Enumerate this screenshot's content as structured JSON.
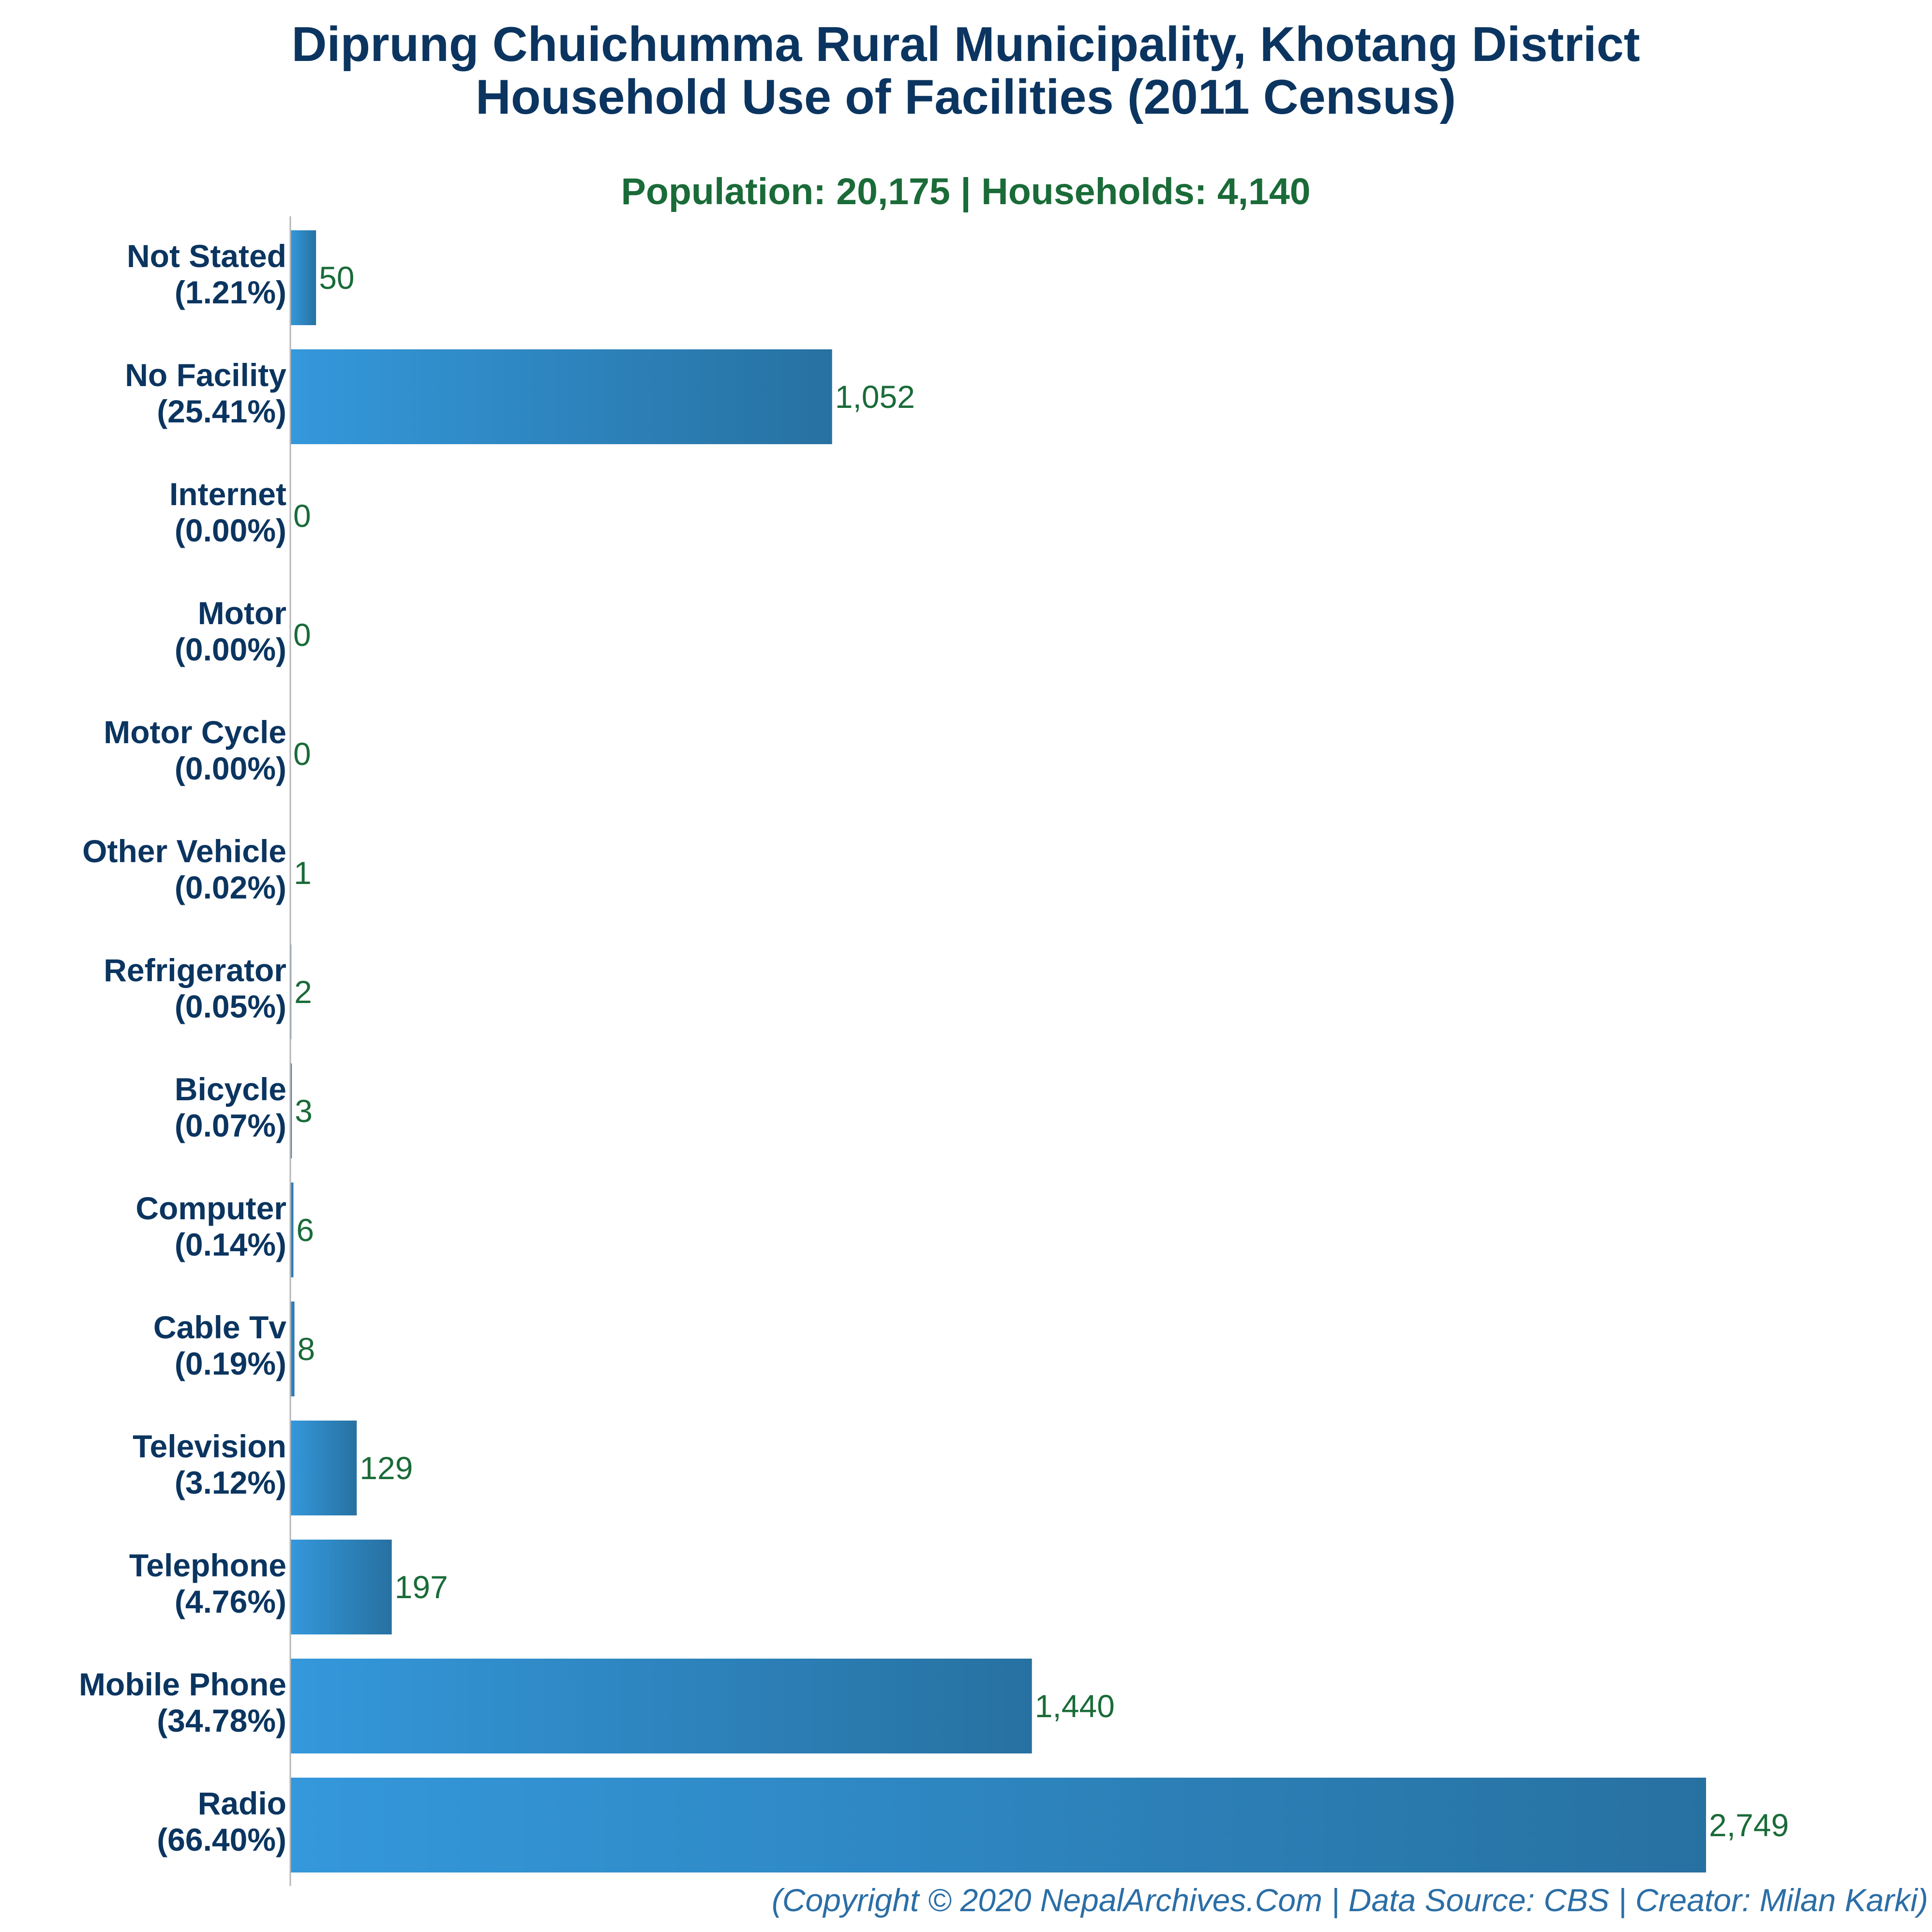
{
  "chart_data": {
    "type": "bar",
    "orientation": "horizontal",
    "title_lines": [
      "Diprung Chuichumma Rural Municipality, Khotang District",
      "Household Use of Facilities (2011 Census)"
    ],
    "subtitle": "Population: 20,175 | Households: 4,140",
    "categories": [
      {
        "name": "Not Stated",
        "pct": "(1.21%)",
        "value": 50,
        "label": "50"
      },
      {
        "name": "No Facility",
        "pct": "(25.41%)",
        "value": 1052,
        "label": "1,052"
      },
      {
        "name": "Internet",
        "pct": "(0.00%)",
        "value": 0,
        "label": "0"
      },
      {
        "name": "Motor",
        "pct": "(0.00%)",
        "value": 0,
        "label": "0"
      },
      {
        "name": "Motor Cycle",
        "pct": "(0.00%)",
        "value": 0,
        "label": "0"
      },
      {
        "name": "Other Vehicle",
        "pct": "(0.02%)",
        "value": 1,
        "label": "1"
      },
      {
        "name": "Refrigerator",
        "pct": "(0.05%)",
        "value": 2,
        "label": "2"
      },
      {
        "name": "Bicycle",
        "pct": "(0.07%)",
        "value": 3,
        "label": "3"
      },
      {
        "name": "Computer",
        "pct": "(0.14%)",
        "value": 6,
        "label": "6"
      },
      {
        "name": "Cable Tv",
        "pct": "(0.19%)",
        "value": 8,
        "label": "8"
      },
      {
        "name": "Television",
        "pct": "(3.12%)",
        "value": 129,
        "label": "129"
      },
      {
        "name": "Telephone",
        "pct": "(4.76%)",
        "value": 197,
        "label": "197"
      },
      {
        "name": "Mobile Phone",
        "pct": "(34.78%)",
        "value": 1440,
        "label": "1,440"
      },
      {
        "name": "Radio",
        "pct": "(66.40%)",
        "value": 2749,
        "label": "2,749"
      }
    ],
    "xlim": [
      0,
      2749
    ],
    "grid": false,
    "bar_color_start": "#3498db",
    "bar_color_end": "#2771a1"
  },
  "footer": "(Copyright © 2020 NepalArchives.Com | Data Source: CBS | Creator: Milan Karki)",
  "colors": {
    "title": "#0b3560",
    "subtitle": "#1a6b38",
    "value_labels": "#1a6b38",
    "footer": "#2b6ea6"
  }
}
